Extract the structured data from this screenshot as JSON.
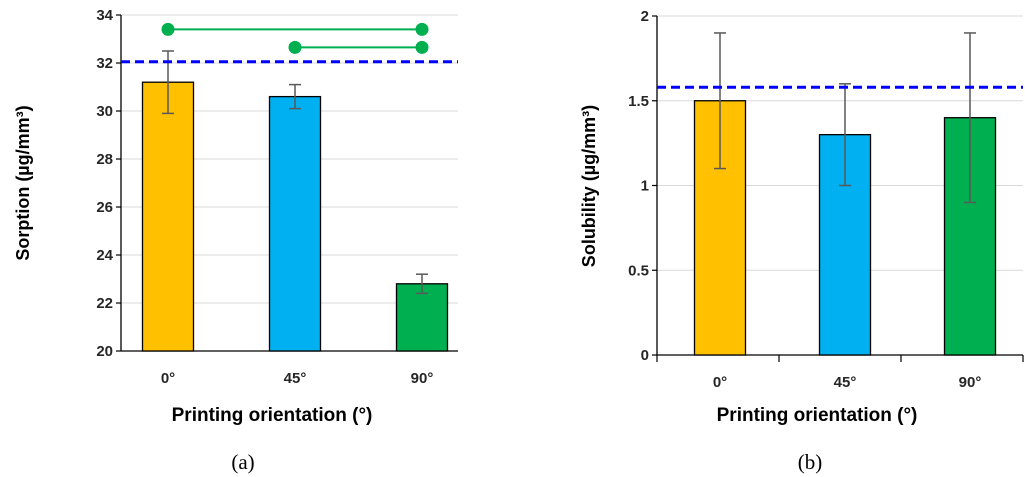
{
  "chart_data": [
    {
      "type": "bar",
      "caption": "(a)",
      "categories": [
        "0°",
        "45°",
        "90°"
      ],
      "values": [
        31.2,
        30.6,
        22.8
      ],
      "error": [
        1.3,
        0.5,
        0.4
      ],
      "bar_colors": [
        "#FFC000",
        "#00B0F0",
        "#00B050"
      ],
      "xlabel": "Printing orientation (°)",
      "ylabel": "Sorption  (µg/mm³)",
      "ylim": [
        20,
        34
      ],
      "yticks": [
        20,
        22,
        24,
        26,
        28,
        30,
        32,
        34
      ],
      "ytick_labels": [
        "20",
        "22",
        "24",
        "26",
        "28",
        "30",
        "32",
        "34"
      ],
      "reference_line": {
        "value": 32.05,
        "color": "#0000FF",
        "style": "dashed"
      },
      "significance_brackets": [
        {
          "from": "0°",
          "to": "90°",
          "level": 33.4,
          "color": "#00B050"
        },
        {
          "from": "45°",
          "to": "90°",
          "level": 32.65,
          "color": "#00B050"
        }
      ],
      "grid": "horizontal"
    },
    {
      "type": "bar",
      "caption": "(b)",
      "categories": [
        "0°",
        "45°",
        "90°"
      ],
      "values": [
        1.5,
        1.3,
        1.4
      ],
      "error": [
        0.4,
        0.3,
        0.5
      ],
      "bar_colors": [
        "#FFC000",
        "#00B0F0",
        "#00B050"
      ],
      "xlabel": "Printing orientation (°)",
      "ylabel": "Solubility  (µg/mm³)",
      "ylim": [
        0,
        2
      ],
      "yticks": [
        0,
        0.5,
        1,
        1.5,
        2
      ],
      "ytick_labels": [
        "0",
        "0.5",
        "1",
        "1.5",
        "2"
      ],
      "reference_line": {
        "value": 1.58,
        "color": "#0000FF",
        "style": "dashed"
      },
      "grid": "horizontal"
    }
  ]
}
